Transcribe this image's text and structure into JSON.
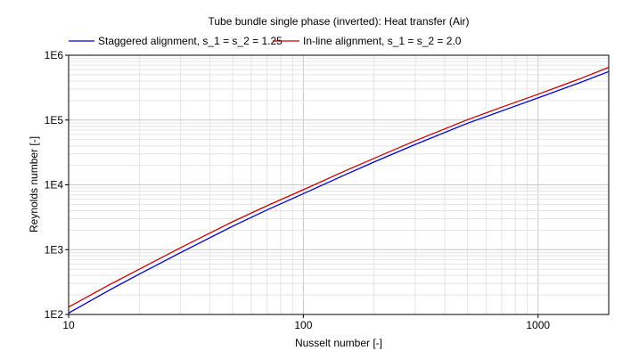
{
  "chart_data": {
    "type": "line",
    "title": "Tube bundle single phase (inverted): Heat transfer (Air)",
    "xlabel": "Nusselt number [-]",
    "ylabel": "Reynolds number [-]",
    "x_scale": "log",
    "y_scale": "log",
    "xlim": [
      10,
      2000
    ],
    "ylim": [
      100,
      1000000
    ],
    "x_ticks": [
      {
        "value": 10,
        "label": "10"
      },
      {
        "value": 100,
        "label": "100"
      },
      {
        "value": 1000,
        "label": "1000"
      }
    ],
    "y_ticks": [
      {
        "value": 100,
        "label": "1E2"
      },
      {
        "value": 1000,
        "label": "1E3"
      },
      {
        "value": 10000,
        "label": "1E4"
      },
      {
        "value": 100000,
        "label": "1E5"
      },
      {
        "value": 1000000,
        "label": "1E6"
      }
    ],
    "grid": true,
    "legend_position": "top",
    "series": [
      {
        "name": "Staggered alignment, s_1 = s_2 = 1.25",
        "color": "#0000c8",
        "x": [
          10,
          15,
          20,
          30,
          50,
          70,
          100,
          150,
          200,
          300,
          500,
          700,
          1000,
          1500,
          2000
        ],
        "y": [
          105,
          240,
          420,
          900,
          2300,
          4100,
          7300,
          14200,
          22500,
          42000,
          89000,
          138000,
          220000,
          375000,
          560000
        ]
      },
      {
        "name": "In-line alignment, s_1 = s_2 = 2.0",
        "color": "#c80000",
        "x": [
          10,
          15,
          20,
          30,
          50,
          70,
          100,
          150,
          200,
          300,
          500,
          700,
          1000,
          1500,
          2000
        ],
        "y": [
          130,
          290,
          500,
          1070,
          2700,
          4750,
          8400,
          16300,
          25600,
          48000,
          101000,
          158000,
          250000,
          430000,
          650000
        ]
      }
    ]
  }
}
